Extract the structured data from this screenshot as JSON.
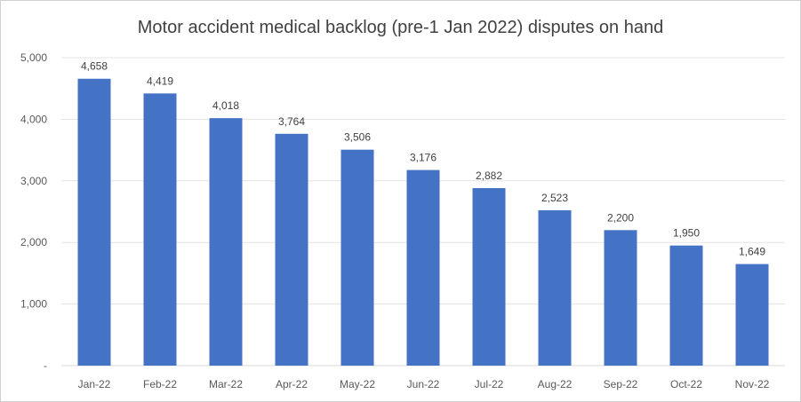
{
  "chart_data": {
    "type": "bar",
    "title": "Motor accident medical backlog (pre-1 Jan 2022) disputes on hand",
    "xlabel": "",
    "ylabel": "",
    "categories": [
      "Jan-22",
      "Feb-22",
      "Mar-22",
      "Apr-22",
      "May-22",
      "Jun-22",
      "Jul-22",
      "Aug-22",
      "Sep-22",
      "Oct-22",
      "Nov-22"
    ],
    "values": [
      4658,
      4419,
      4018,
      3764,
      3506,
      3176,
      2882,
      2523,
      2200,
      1950,
      1649
    ],
    "value_labels": [
      "4,658",
      "4,419",
      "4,018",
      "3,764",
      "3,506",
      "3,176",
      "2,882",
      "2,523",
      "2,200",
      "1,950",
      "1,649"
    ],
    "ylim": [
      0,
      5000
    ],
    "yticks": [
      0,
      1000,
      2000,
      3000,
      4000,
      5000
    ],
    "ytick_labels": [
      "-",
      "1,000",
      "2,000",
      "3,000",
      "4,000",
      "5,000"
    ],
    "grid": true,
    "legend": "none",
    "bar_color": "#4472C4"
  }
}
